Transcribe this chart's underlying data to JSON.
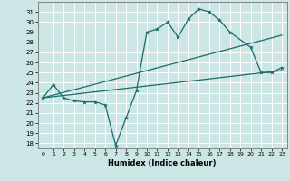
{
  "title": "",
  "xlabel": "Humidex (Indice chaleur)",
  "ylabel": "",
  "xlim": [
    -0.5,
    23.5
  ],
  "ylim": [
    17.5,
    32.0
  ],
  "xticks": [
    0,
    1,
    2,
    3,
    4,
    5,
    6,
    7,
    8,
    9,
    10,
    11,
    12,
    13,
    14,
    15,
    16,
    17,
    18,
    19,
    20,
    21,
    22,
    23
  ],
  "yticks": [
    18,
    19,
    20,
    21,
    22,
    23,
    24,
    25,
    26,
    27,
    28,
    29,
    30,
    31
  ],
  "bg_color": "#cce5e5",
  "grid_color": "#ffffff",
  "line_color": "#1a6b6b",
  "line1": {
    "x": [
      0,
      1,
      2,
      3,
      4,
      5,
      6,
      7,
      8,
      9,
      10,
      11,
      12,
      13,
      14,
      15,
      16,
      17,
      18,
      20,
      21,
      22,
      23
    ],
    "y": [
      22.5,
      23.8,
      22.5,
      22.2,
      22.1,
      22.1,
      21.8,
      17.8,
      20.5,
      23.2,
      29.0,
      29.3,
      30.0,
      28.5,
      30.3,
      31.3,
      31.0,
      30.2,
      29.0,
      27.5,
      25.0,
      25.0,
      25.5
    ]
  },
  "line2": {
    "x": [
      0,
      23
    ],
    "y": [
      22.5,
      25.2
    ]
  },
  "line3": {
    "x": [
      0,
      23
    ],
    "y": [
      22.5,
      28.7
    ]
  }
}
